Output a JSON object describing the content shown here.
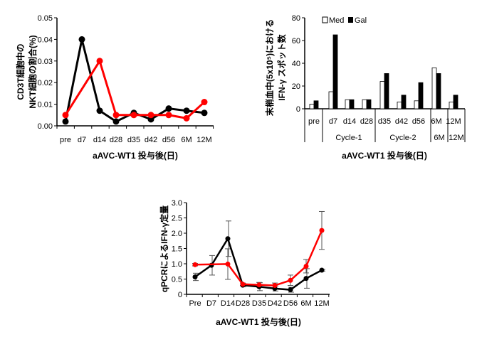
{
  "colors": {
    "black": "#000000",
    "red": "#ff0000",
    "med_fill": "#ffffff",
    "gal_fill": "#000000"
  },
  "chart_data": [
    {
      "type": "line",
      "xlabel": "aAVC-WT1 投与後(日)",
      "ylabel_lines": [
        "CD3T細胞中の",
        "NKT細胞の割合(%)"
      ],
      "categories": [
        "pre",
        "d7",
        "d14",
        "d28",
        "d35",
        "d42",
        "d56",
        "6M",
        "12M"
      ],
      "yticks": [
        "0.00",
        "0.01",
        "0.02",
        "0.03",
        "0.04",
        "0.05"
      ],
      "ylim": [
        0,
        0.05
      ],
      "grid": false,
      "series": [
        {
          "color": "#000000",
          "values": [
            0.002,
            0.04,
            0.007,
            0.002,
            0.006,
            0.003,
            0.008,
            0.007,
            0.006
          ]
        },
        {
          "color": "#ff0000",
          "values": [
            0.005,
            null,
            0.03,
            0.005,
            0.005,
            0.005,
            0.005,
            0.0035,
            0.011
          ]
        }
      ]
    },
    {
      "type": "bar",
      "xlabel": "aAVC-WT1 投与後(日)",
      "ylabel_lines": [
        "末梢血中(5x10⁵)における",
        "IFN-γ スポット数"
      ],
      "categories": [
        "pre",
        "d7",
        "d14",
        "d28",
        "d35",
        "d42",
        "d56",
        "6M",
        "12M"
      ],
      "groups": [
        "",
        "Cycle-1",
        "Cycle-2",
        "6M",
        "12M"
      ],
      "yticks": [
        "0",
        "20",
        "40",
        "60",
        "80"
      ],
      "ylim": [
        0,
        80
      ],
      "grid": false,
      "legend_position": "top",
      "series": [
        {
          "name": "Med",
          "values": [
            4,
            15,
            8,
            8,
            24,
            6,
            7,
            36,
            6
          ]
        },
        {
          "name": "Gal",
          "values": [
            7,
            65,
            8,
            8,
            31,
            12,
            23,
            31,
            12
          ]
        }
      ]
    },
    {
      "type": "line",
      "xlabel": "aAVC-WT1 投与後(日)",
      "ylabel": "qPCRによるIFN-γ定量",
      "categories": [
        "Pre",
        "D7",
        "D14",
        "D28",
        "D35",
        "D42",
        "D56",
        "6M",
        "12M"
      ],
      "yticks": [
        "0",
        "0.5",
        "1.0",
        "1.5",
        "2.0",
        "2.5",
        "3.0"
      ],
      "ylim": [
        0,
        3.0
      ],
      "grid": false,
      "series": [
        {
          "color": "#000000",
          "values": [
            0.57,
            0.95,
            1.82,
            0.3,
            0.25,
            0.19,
            0.15,
            0.52,
            0.79
          ],
          "errors": [
            0.12,
            0.32,
            0.58,
            0.05,
            0.13,
            0.08,
            0.08,
            0.32,
            0.03
          ]
        },
        {
          "color": "#ff0000",
          "values": [
            0.97,
            null,
            0.99,
            0.33,
            0.31,
            0.29,
            0.46,
            0.92,
            2.09
          ],
          "errors": [
            0.04,
            null,
            0.5,
            0.04,
            0.08,
            0.08,
            0.17,
            0.22,
            0.62
          ]
        }
      ]
    }
  ]
}
